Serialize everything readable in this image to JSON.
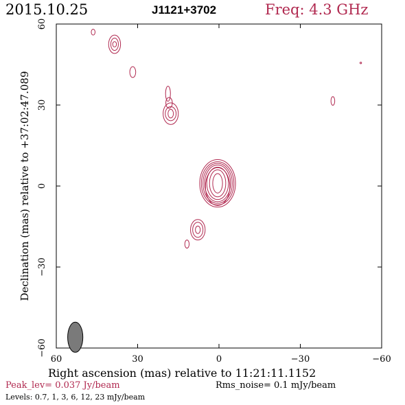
{
  "header": {
    "date": "2015.10.25",
    "source": "J1121+3702",
    "freq": "Freq: 4.3 GHz"
  },
  "footer": {
    "peak": "Peak_lev=  0.037 Jy/beam",
    "rms": "Rms_noise=   0.1 mJy/beam",
    "levels": "Levels: 0.7,    1,    3,    6,   12,   23 mJy/beam"
  },
  "colors": {
    "contour": "#b0284f",
    "beam": "#7a7a7a",
    "axis": "#000000"
  },
  "chart_data": {
    "type": "contour",
    "xlabel": "Right ascension (mas) relative to 11:21:11.1152",
    "ylabel": "Declination (mas) relative to +37:02:47.089",
    "xlim": [
      60,
      -60
    ],
    "ylim": [
      -60,
      60
    ],
    "xticks": [
      60,
      30,
      0,
      -30,
      -60
    ],
    "yticks": [
      -60,
      -30,
      0,
      30,
      60
    ],
    "xtick_labels": [
      "60",
      "30",
      "0",
      "−30",
      "−60"
    ],
    "ytick_labels": [
      "−60",
      "−30",
      "0",
      "30",
      "60"
    ],
    "levels_mJy": [
      0.7,
      1,
      3,
      6,
      12,
      23
    ],
    "peak_Jy_per_beam": 0.037,
    "rms_mJy_per_beam": 0.1,
    "beam": {
      "x": 53,
      "y": -56,
      "major_mas": 5.6,
      "minor_mas": 2.8
    },
    "components": [
      {
        "name": "core",
        "x": 0.5,
        "y": 1.0,
        "contours": [
          [
            1.8,
            3.6
          ],
          [
            3.0,
            5.0
          ],
          [
            4.0,
            6.0
          ],
          [
            4.8,
            6.8
          ],
          [
            5.4,
            7.4
          ],
          [
            6.0,
            8.0
          ],
          [
            6.6,
            8.8
          ],
          [
            4.5,
            7.0
          ]
        ],
        "shift": [
          [
            0,
            0
          ],
          [
            0,
            0
          ],
          [
            0,
            0
          ],
          [
            0,
            0
          ],
          [
            0,
            0
          ],
          [
            0,
            0
          ],
          [
            0,
            0
          ],
          [
            0,
            -1.2
          ]
        ]
      },
      {
        "name": "jet-sw",
        "x": 7.8,
        "y": -16.2,
        "contours": [
          [
            0.9,
            1.4
          ],
          [
            1.9,
            2.8
          ],
          [
            2.7,
            3.8
          ]
        ]
      },
      {
        "name": "jet-sw-faint",
        "x": 11.8,
        "y": -21.5,
        "contours": [
          [
            0.8,
            1.5
          ]
        ]
      },
      {
        "name": "jet-ne",
        "x": 17.8,
        "y": 26.8,
        "contours": [
          [
            1.0,
            1.6
          ],
          [
            2.0,
            2.6
          ],
          [
            2.8,
            4.0
          ]
        ]
      },
      {
        "name": "jet-ne-ext",
        "x": 18.8,
        "y": 34.2,
        "contours": [
          [
            0.9,
            2.8
          ]
        ]
      },
      {
        "name": "jet-ne-ext2",
        "x": 18.4,
        "y": 30.8,
        "contours": [
          [
            1.2,
            2.0
          ]
        ]
      },
      {
        "name": "knot-ne1",
        "x": 31.8,
        "y": 42.2,
        "contours": [
          [
            1.1,
            2.0
          ]
        ]
      },
      {
        "name": "knot-ne2",
        "x": 38.5,
        "y": 52.5,
        "contours": [
          [
            0.7,
            1.0
          ],
          [
            1.4,
            2.3
          ],
          [
            2.2,
            3.4
          ]
        ]
      },
      {
        "name": "knot-ne3",
        "x": 46.4,
        "y": 57.0,
        "contours": [
          [
            0.7,
            1.1
          ]
        ]
      },
      {
        "name": "east-blob",
        "x": -42.0,
        "y": 31.5,
        "contours": [
          [
            0.7,
            1.6
          ]
        ]
      },
      {
        "name": "east-speck",
        "x": -52.3,
        "y": 45.6,
        "contours": [
          [
            0.3,
            0.3
          ]
        ]
      }
    ]
  }
}
